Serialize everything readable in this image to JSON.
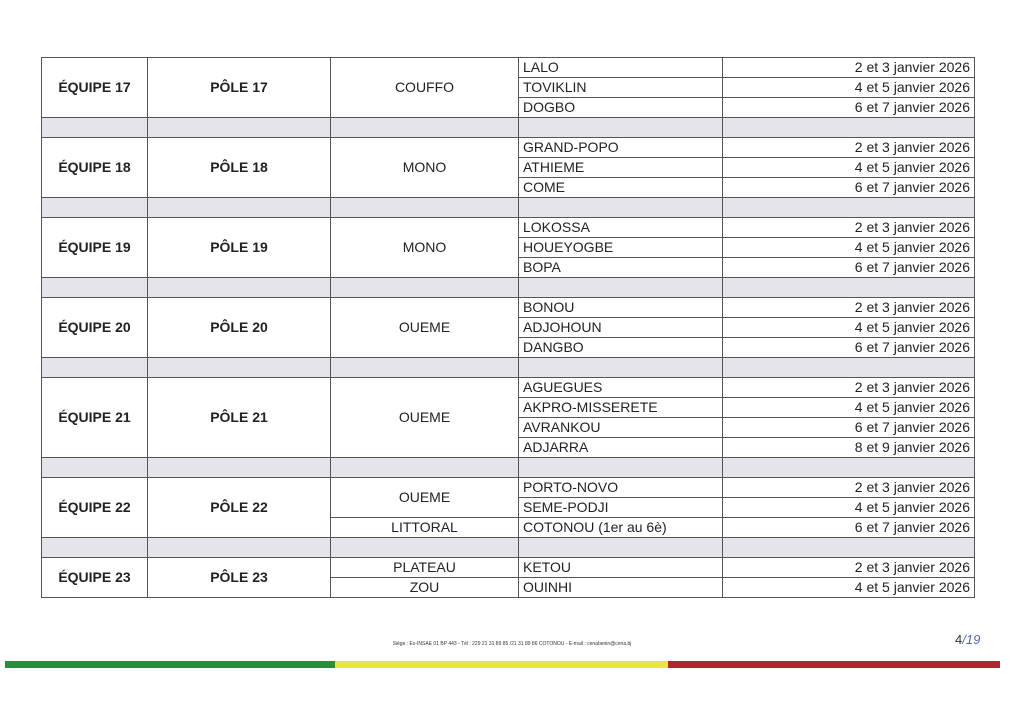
{
  "groups": [
    {
      "equipe": "ÉQUIPE 17",
      "pole": "PÔLE 17",
      "departments": [
        {
          "name": "COUFFO",
          "span": 3
        }
      ],
      "communes": [
        {
          "name": "LALO",
          "date": "2 et 3 janvier 2026"
        },
        {
          "name": "TOVIKLIN",
          "date": "4 et 5 janvier 2026"
        },
        {
          "name": "DOGBO",
          "date": "6 et 7 janvier 2026"
        }
      ]
    },
    {
      "equipe": "ÉQUIPE 18",
      "pole": "PÔLE 18",
      "departments": [
        {
          "name": "MONO",
          "span": 3
        }
      ],
      "communes": [
        {
          "name": "GRAND-POPO",
          "date": "2 et 3 janvier 2026"
        },
        {
          "name": "ATHIEME",
          "date": "4 et 5 janvier 2026"
        },
        {
          "name": "COME",
          "date": "6 et 7 janvier 2026"
        }
      ]
    },
    {
      "equipe": "ÉQUIPE 19",
      "pole": "PÔLE 19",
      "departments": [
        {
          "name": "MONO",
          "span": 3
        }
      ],
      "communes": [
        {
          "name": "LOKOSSA",
          "date": "2 et 3 janvier 2026"
        },
        {
          "name": "HOUEYOGBE",
          "date": "4 et 5 janvier 2026"
        },
        {
          "name": "BOPA",
          "date": "6 et 7 janvier 2026"
        }
      ]
    },
    {
      "equipe": "ÉQUIPE 20",
      "pole": "PÔLE 20",
      "departments": [
        {
          "name": "OUEME",
          "span": 3
        }
      ],
      "communes": [
        {
          "name": "BONOU",
          "date": "2 et 3 janvier 2026"
        },
        {
          "name": "ADJOHOUN",
          "date": "4 et 5 janvier 2026"
        },
        {
          "name": "DANGBO",
          "date": "6 et 7 janvier 2026"
        }
      ]
    },
    {
      "equipe": "ÉQUIPE 21",
      "pole": "PÔLE 21",
      "departments": [
        {
          "name": "OUEME",
          "span": 4
        }
      ],
      "communes": [
        {
          "name": "AGUEGUES",
          "date": "2 et 3 janvier 2026"
        },
        {
          "name": "AKPRO-MISSERETE",
          "date": "4 et 5 janvier 2026"
        },
        {
          "name": "AVRANKOU",
          "date": "6 et 7 janvier 2026"
        },
        {
          "name": "ADJARRA",
          "date": "8 et 9 janvier 2026"
        }
      ]
    },
    {
      "equipe": "ÉQUIPE 22",
      "pole": "PÔLE 22",
      "departments": [
        {
          "name": "OUEME",
          "span": 2
        },
        {
          "name": "LITTORAL",
          "span": 1
        }
      ],
      "communes": [
        {
          "name": "PORTO-NOVO",
          "date": "2 et 3 janvier 2026"
        },
        {
          "name": "SEME-PODJI",
          "date": "4 et 5 janvier 2026"
        },
        {
          "name": "COTONOU (1er au 6è)",
          "date": "6 et 7 janvier 2026"
        }
      ]
    },
    {
      "equipe": "ÉQUIPE 23",
      "pole": "PÔLE 23",
      "departments": [
        {
          "name": "PLATEAU",
          "span": 1
        },
        {
          "name": "ZOU",
          "span": 1
        }
      ],
      "communes": [
        {
          "name": "KETOU",
          "date": "2 et 3 janvier 2026"
        },
        {
          "name": "OUINHI",
          "date": "4 et 5 janvier 2026"
        }
      ]
    }
  ],
  "footer": {
    "address": "Siège : Ex-INSAE 01 BP 443 - Tél : 229 21 31 89 85 /21 31 89 86 COTONOU - E-mail : cenabenin@cena.bj",
    "page_number": "4",
    "page_total": "19"
  },
  "colors": {
    "green": "#2e8b3a",
    "yellow": "#e8e63a",
    "red": "#b3262d",
    "gap_row": "#e4e4ea"
  }
}
